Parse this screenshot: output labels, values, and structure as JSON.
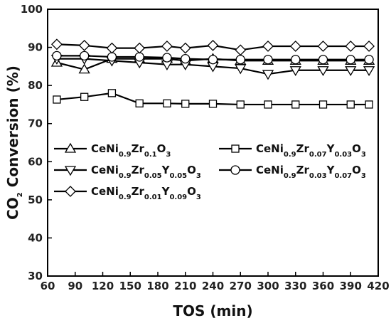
{
  "chart_data": {
    "type": "line",
    "xlabel": "TOS (min)",
    "ylabel_prefix": "CO",
    "ylabel_sub": "2",
    "ylabel_suffix": " Conversion (%)",
    "xlim": [
      60,
      420
    ],
    "ylim": [
      30,
      100
    ],
    "x_ticks": [
      60,
      90,
      120,
      150,
      180,
      210,
      240,
      270,
      300,
      330,
      360,
      390,
      420
    ],
    "y_ticks": [
      30,
      40,
      50,
      60,
      70,
      80,
      90,
      100
    ],
    "x": [
      70,
      100,
      130,
      160,
      190,
      210,
      240,
      270,
      300,
      330,
      360,
      390,
      410
    ],
    "series": [
      {
        "name": "CeNi0.9Zr0.1O3",
        "name_parts": [
          [
            "CeNi",
            ""
          ],
          [
            "0.9",
            "sub"
          ],
          [
            "Zr",
            ""
          ],
          [
            "0.1",
            "sub"
          ],
          [
            "O",
            ""
          ],
          [
            "3",
            "sub"
          ]
        ],
        "marker": "triangle-up",
        "values": [
          86.0,
          84.2,
          87.0,
          87.0,
          87.0,
          86.5,
          87.0,
          86.5,
          86.5,
          86.5,
          86.5,
          86.5,
          86.5
        ]
      },
      {
        "name": "CeNi0.9Zr0.07Y0.03O3",
        "name_parts": [
          [
            "CeNi",
            ""
          ],
          [
            "0.9",
            "sub"
          ],
          [
            "Zr",
            ""
          ],
          [
            "0.07",
            "sub"
          ],
          [
            "Y",
            ""
          ],
          [
            "0.03",
            "sub"
          ],
          [
            "O",
            ""
          ],
          [
            "3",
            "sub"
          ]
        ],
        "marker": "square",
        "values": [
          76.3,
          77.0,
          78.0,
          75.3,
          75.3,
          75.2,
          75.2,
          75.0,
          75.0,
          75.0,
          75.0,
          75.0,
          75.0
        ]
      },
      {
        "name": "CeNi0.9Zr0.05Y0.05O3",
        "name_parts": [
          [
            "CeNi",
            ""
          ],
          [
            "0.9",
            "sub"
          ],
          [
            "Zr",
            ""
          ],
          [
            "0.05",
            "sub"
          ],
          [
            "Y",
            ""
          ],
          [
            "0.05",
            "sub"
          ],
          [
            "O",
            ""
          ],
          [
            "3",
            "sub"
          ]
        ],
        "marker": "triangle-down",
        "values": [
          87.0,
          87.0,
          86.5,
          86.0,
          85.5,
          85.5,
          85.0,
          84.5,
          83.0,
          84.0,
          84.0,
          84.0,
          84.0
        ]
      },
      {
        "name": "CeNi0.9Zr0.03Y0.07O3",
        "name_parts": [
          [
            "CeNi",
            ""
          ],
          [
            "0.9",
            "sub"
          ],
          [
            "Zr",
            ""
          ],
          [
            "0.03",
            "sub"
          ],
          [
            "Y",
            ""
          ],
          [
            "0.07",
            "sub"
          ],
          [
            "O",
            ""
          ],
          [
            "3",
            "sub"
          ]
        ],
        "marker": "circle",
        "values": [
          87.8,
          87.8,
          87.5,
          87.5,
          87.3,
          87.0,
          86.8,
          86.8,
          86.8,
          86.8,
          86.8,
          86.8,
          86.8
        ]
      },
      {
        "name": "CeNi0.9Zr0.01Y0.09O3",
        "name_parts": [
          [
            "CeNi",
            ""
          ],
          [
            "0.9",
            "sub"
          ],
          [
            "Zr",
            ""
          ],
          [
            "0.01",
            "sub"
          ],
          [
            "Y",
            ""
          ],
          [
            "0.09",
            "sub"
          ],
          [
            "O",
            ""
          ],
          [
            "3",
            "sub"
          ]
        ],
        "marker": "diamond",
        "values": [
          90.8,
          90.5,
          89.8,
          89.8,
          90.3,
          89.8,
          90.5,
          89.3,
          90.3,
          90.3,
          90.3,
          90.3,
          90.3
        ]
      }
    ],
    "legend": "inside, center-left, two columns",
    "grid": false
  }
}
